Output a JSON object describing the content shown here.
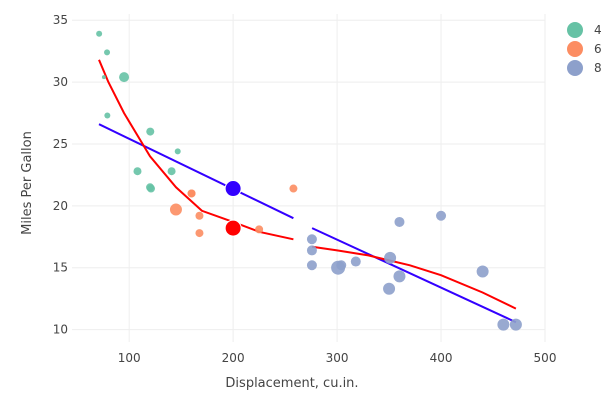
{
  "chart_data": {
    "type": "scatter",
    "xlabel": "Displacement, cu.in.",
    "ylabel": "Miles Per Gallon",
    "xlim": [
      45,
      500
    ],
    "ylim": [
      9,
      35.5
    ],
    "xticks": [
      100,
      200,
      300,
      400,
      500
    ],
    "yticks": [
      10,
      15,
      20,
      25,
      30,
      35
    ],
    "grid": true,
    "legend": {
      "placement": "top-right",
      "entries": [
        "4",
        "6",
        "8"
      ]
    },
    "series": [
      {
        "name": "4",
        "color": "#66c2a5",
        "points": [
          {
            "x": 71.1,
            "y": 33.9,
            "size": 3
          },
          {
            "x": 78.7,
            "y": 32.4,
            "size": 3
          },
          {
            "x": 75.7,
            "y": 30.4,
            "size": 2
          },
          {
            "x": 95.1,
            "y": 30.4,
            "size": 5
          },
          {
            "x": 79.0,
            "y": 27.3,
            "size": 3
          },
          {
            "x": 120.3,
            "y": 26.0,
            "size": 4
          },
          {
            "x": 146.7,
            "y": 24.4,
            "size": 3
          },
          {
            "x": 108.0,
            "y": 22.8,
            "size": 4
          },
          {
            "x": 140.8,
            "y": 22.8,
            "size": 4
          },
          {
            "x": 120.1,
            "y": 21.5,
            "size": 4
          },
          {
            "x": 121.0,
            "y": 21.4,
            "size": 4
          }
        ]
      },
      {
        "name": "6",
        "color": "#fc8d62",
        "points": [
          {
            "x": 160.0,
            "y": 21.0,
            "size": 4
          },
          {
            "x": 160.0,
            "y": 21.0,
            "size": 4
          },
          {
            "x": 258.0,
            "y": 21.4,
            "size": 4
          },
          {
            "x": 225.0,
            "y": 18.1,
            "size": 4
          },
          {
            "x": 167.6,
            "y": 19.2,
            "size": 4
          },
          {
            "x": 167.6,
            "y": 17.8,
            "size": 4
          },
          {
            "x": 145.0,
            "y": 19.7,
            "size": 6
          }
        ]
      },
      {
        "name": "8",
        "color": "#8da0cb",
        "points": [
          {
            "x": 360.0,
            "y": 18.7,
            "size": 5
          },
          {
            "x": 360.0,
            "y": 14.3,
            "size": 6
          },
          {
            "x": 275.8,
            "y": 16.4,
            "size": 5
          },
          {
            "x": 275.8,
            "y": 17.3,
            "size": 5
          },
          {
            "x": 275.8,
            "y": 15.2,
            "size": 5
          },
          {
            "x": 472.0,
            "y": 10.4,
            "size": 6
          },
          {
            "x": 460.0,
            "y": 10.4,
            "size": 6
          },
          {
            "x": 440.0,
            "y": 14.7,
            "size": 6
          },
          {
            "x": 318.0,
            "y": 15.5,
            "size": 5
          },
          {
            "x": 304.0,
            "y": 15.2,
            "size": 5
          },
          {
            "x": 350.0,
            "y": 13.3,
            "size": 6
          },
          {
            "x": 400.0,
            "y": 19.2,
            "size": 5
          },
          {
            "x": 351.0,
            "y": 15.8,
            "size": 6
          },
          {
            "x": 301.0,
            "y": 15.0,
            "size": 7
          }
        ]
      }
    ],
    "highlights": [
      {
        "x": 200,
        "y": 21.4,
        "color": "#3300ff"
      },
      {
        "x": 200,
        "y": 18.2,
        "color": "#ff0000"
      }
    ],
    "lines": [
      {
        "color": "#3300ff",
        "points": [
          [
            71,
            26.6
          ],
          [
            258,
            19.0
          ]
        ]
      },
      {
        "color": "#3300ff",
        "points": [
          [
            276,
            18.2
          ],
          [
            472,
            10.6
          ]
        ]
      },
      {
        "color": "#ff0000",
        "points": [
          [
            71,
            31.8
          ],
          [
            80,
            30.0
          ],
          [
            95,
            27.5
          ],
          [
            120,
            24.0
          ],
          [
            145,
            21.5
          ],
          [
            170,
            19.6
          ],
          [
            200,
            18.7
          ],
          [
            225,
            17.9
          ],
          [
            258,
            17.3
          ]
        ]
      },
      {
        "color": "#ff0000",
        "points": [
          [
            276,
            16.7
          ],
          [
            300,
            16.4
          ],
          [
            330,
            16.0
          ],
          [
            370,
            15.2
          ],
          [
            400,
            14.4
          ],
          [
            440,
            13.0
          ],
          [
            472,
            11.7
          ]
        ]
      }
    ]
  }
}
